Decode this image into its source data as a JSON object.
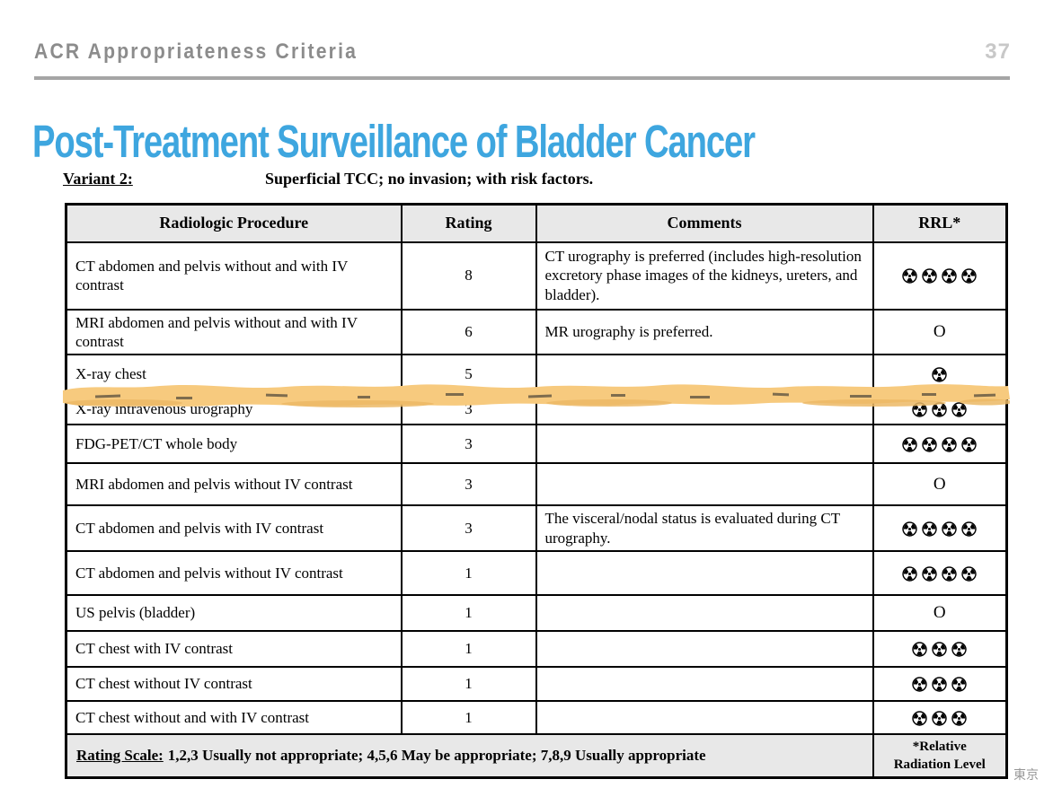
{
  "colors": {
    "accent_blue": "#3EA6DF",
    "highlight_yellow": "#F7CA7E",
    "header_gray_bg": "#E8E8E8"
  },
  "header": {
    "title": "ACR Appropriateness Criteria",
    "page_number": "37"
  },
  "slide_title": "Post-Treatment Surveillance of Bladder Cancer",
  "variant": {
    "label": "Variant 2:",
    "description": "Superficial TCC; no invasion; with risk factors."
  },
  "table": {
    "columns": [
      "Radiologic Procedure",
      "Rating",
      "Comments",
      "RRL*"
    ],
    "rows": [
      {
        "procedure": "CT abdomen and pelvis without and with IV contrast",
        "rating": "8",
        "comments": "CT urography is preferred (includes high-resolution excretory phase images of the kidneys, ureters, and bladder).",
        "rrl": 4
      },
      {
        "procedure": "MRI abdomen and pelvis without and with IV contrast",
        "rating": "6",
        "comments": "MR urography is preferred.",
        "rrl": "O"
      },
      {
        "procedure": "X-ray chest",
        "rating": "5",
        "comments": "",
        "rrl": 1
      },
      {
        "procedure": "X-ray intravenous urography",
        "rating": "3",
        "comments": "",
        "rrl": 3
      },
      {
        "procedure": "FDG-PET/CT whole body",
        "rating": "3",
        "comments": "",
        "rrl": 4
      },
      {
        "procedure": "MRI abdomen and pelvis without IV contrast",
        "rating": "3",
        "comments": "",
        "rrl": "O"
      },
      {
        "procedure": "CT abdomen and pelvis with IV contrast",
        "rating": "3",
        "comments": "The visceral/nodal status is evaluated during CT urography.",
        "rrl": 4
      },
      {
        "procedure": "CT abdomen and pelvis without IV contrast",
        "rating": "1",
        "comments": "",
        "rrl": 4
      },
      {
        "procedure": "US pelvis (bladder)",
        "rating": "1",
        "comments": "",
        "rrl": "O"
      },
      {
        "procedure": "CT chest with IV contrast",
        "rating": "1",
        "comments": "",
        "rrl": 3
      },
      {
        "procedure": "CT chest without IV contrast",
        "rating": "1",
        "comments": "",
        "rrl": 3
      },
      {
        "procedure": "CT chest without and with IV contrast",
        "rating": "1",
        "comments": "",
        "rrl": 3
      }
    ],
    "rrl_zero_symbol": "O",
    "footer": {
      "rating_scale_label": "Rating Scale:",
      "rating_scale_text": "1,2,3 Usually not appropriate; 4,5,6 May be appropriate; 7,8,9 Usually appropriate",
      "rrl_note_line1": "*Relative",
      "rrl_note_line2": "Radiation Level"
    }
  },
  "annotation": {
    "type": "highlighter-stroke",
    "note": "hand-drawn yellow marker stroke crossing the full table width between the X-ray chest and X-ray intravenous urography rows"
  },
  "watermark": "東京"
}
